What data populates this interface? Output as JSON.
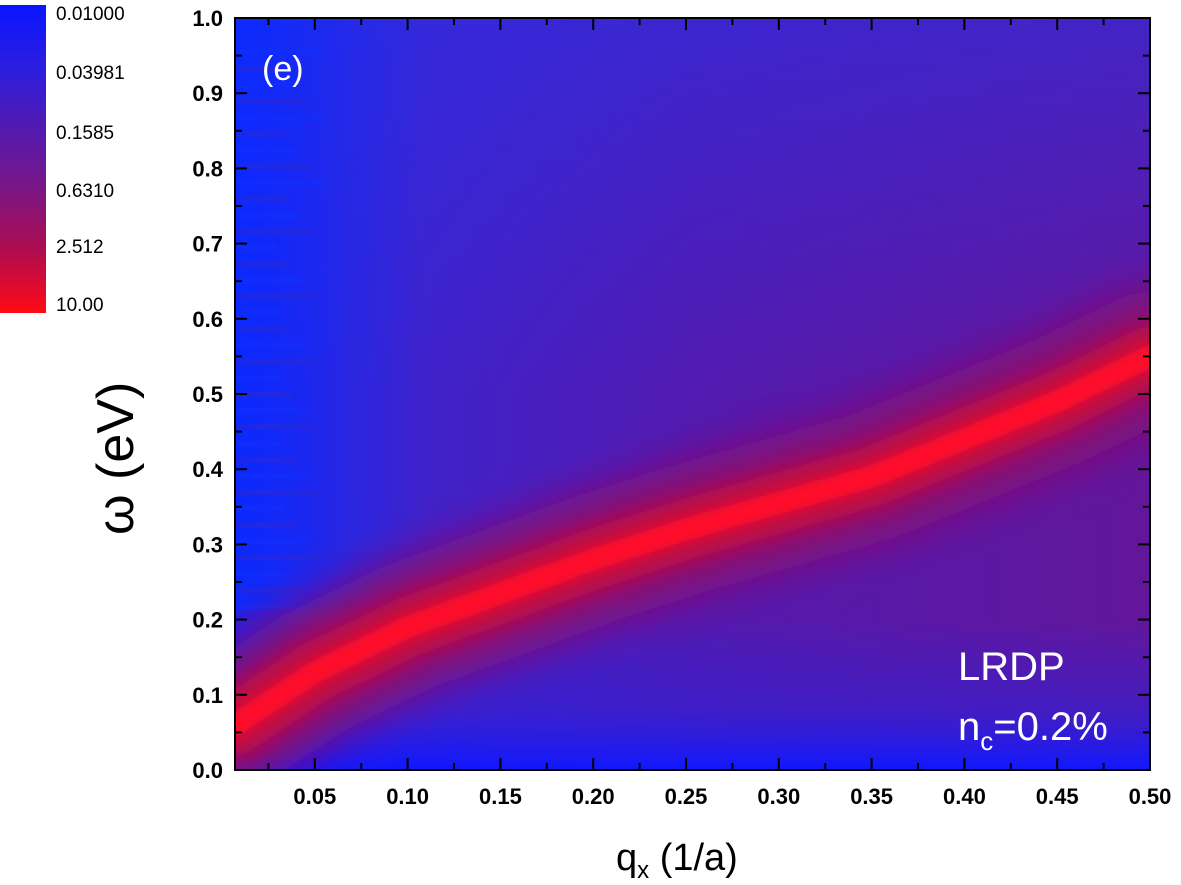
{
  "chart_data": {
    "type": "heatmap",
    "title": "",
    "panel_label": "(e)",
    "xlabel": {
      "main": "q",
      "sub": "x",
      "rest": " (1/a)"
    },
    "ylabel": "ω (eV)",
    "xlim": [
      0.007,
      0.5
    ],
    "ylim": [
      0.0,
      1.0
    ],
    "x_ticks": [
      0.05,
      0.1,
      0.15,
      0.2,
      0.25,
      0.3,
      0.35,
      0.4,
      0.45,
      0.5
    ],
    "x_tick_labels": [
      "0.05",
      "0.10",
      "0.15",
      "0.20",
      "0.25",
      "0.30",
      "0.35",
      "0.40",
      "0.45",
      "0.50"
    ],
    "y_ticks": [
      0.0,
      0.1,
      0.2,
      0.3,
      0.4,
      0.5,
      0.6,
      0.7,
      0.8,
      0.9,
      1.0
    ],
    "y_tick_labels": [
      "0.0",
      "0.1",
      "0.2",
      "0.3",
      "0.4",
      "0.5",
      "0.6",
      "0.7",
      "0.8",
      "0.9",
      "1.0"
    ],
    "colorbar": {
      "scale": "log",
      "labels": [
        "0.01000",
        "0.03981",
        "0.1585",
        "0.6310",
        "2.512",
        "10.00"
      ],
      "colors": [
        "#0a14ff",
        "#3a1ccc",
        "#5a1ba5",
        "#7d1580",
        "#b00c4e",
        "#ff0a14"
      ]
    },
    "dispersion_peak": {
      "description_points_x": [
        0.007,
        0.05,
        0.1,
        0.15,
        0.2,
        0.25,
        0.3,
        0.35,
        0.4,
        0.45,
        0.5
      ],
      "description_points_y": [
        0.06,
        0.13,
        0.19,
        0.235,
        0.28,
        0.32,
        0.355,
        0.39,
        0.44,
        0.49,
        0.55
      ]
    },
    "annotations": {
      "model": "LRDP",
      "conc_main": "n",
      "conc_sub": "c",
      "conc_rest": "=0.2%"
    },
    "grid": false,
    "legend": "colorbar-left"
  }
}
